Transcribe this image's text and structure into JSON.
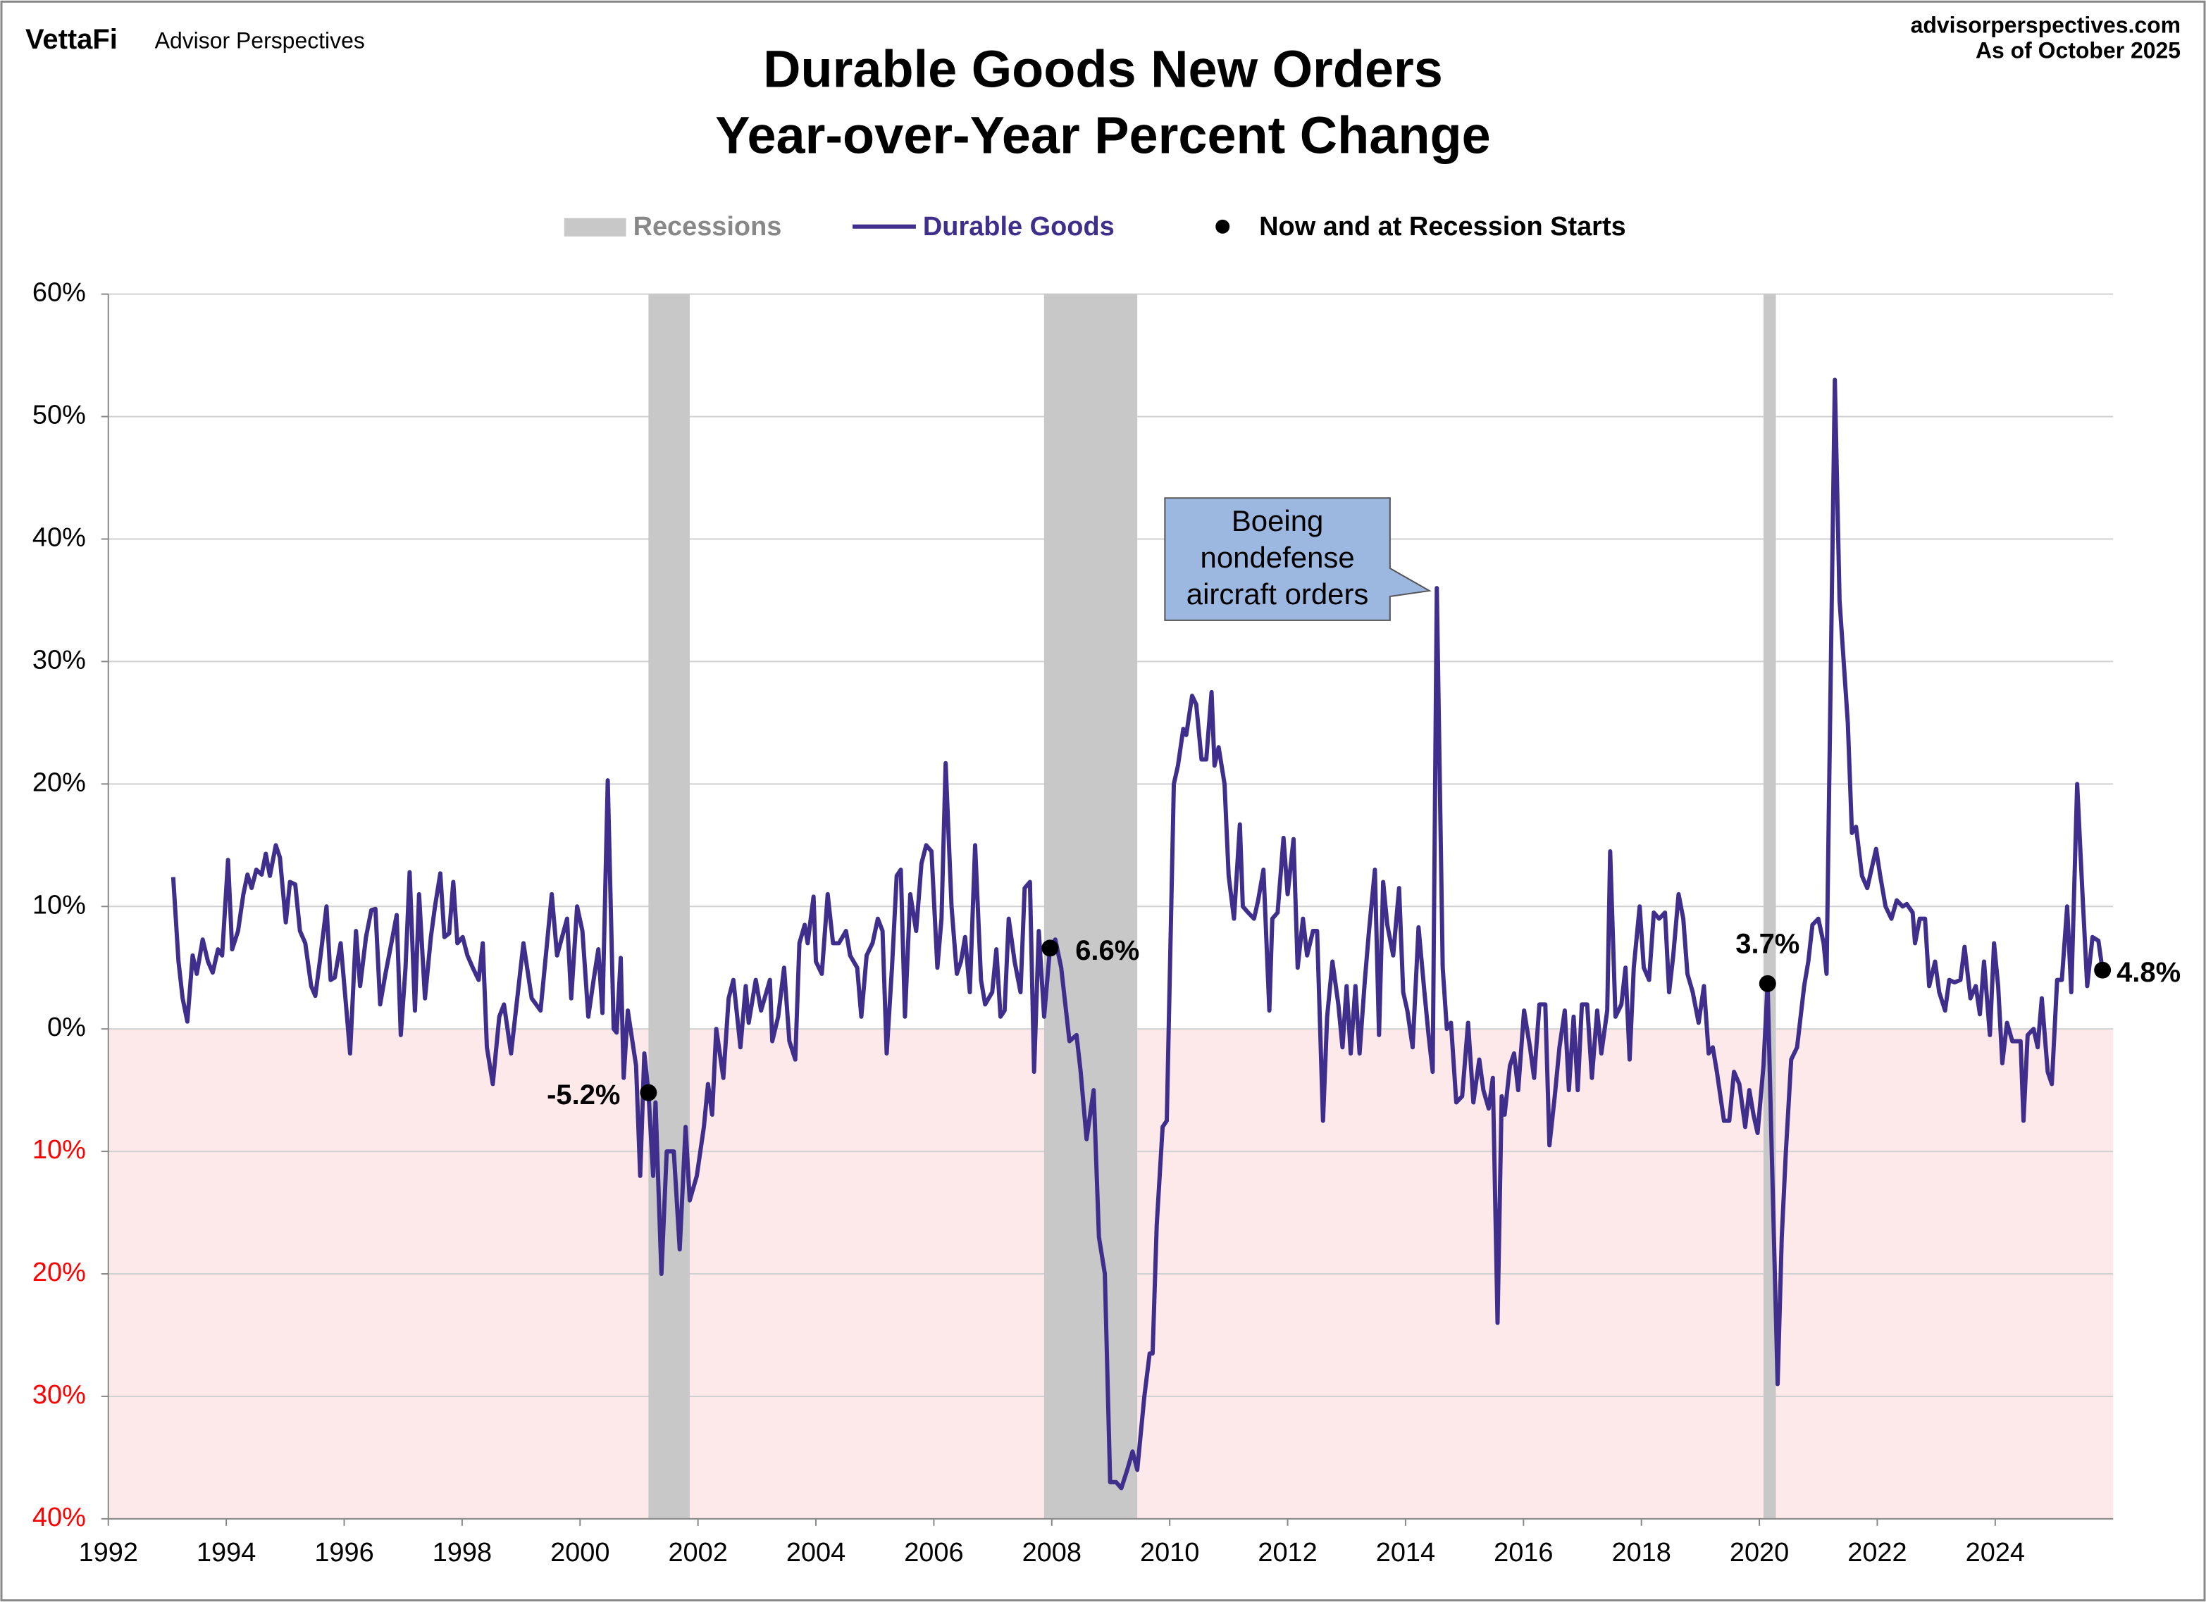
{
  "header": {
    "brand": "VettaFi",
    "publisher": "Advisor Perspectives",
    "website": "advisorperspectives.com",
    "as_of": "As of October 2025"
  },
  "chart_data": {
    "type": "line",
    "title": [
      "Durable Goods New Orders",
      "Year-over-Year Percent Change"
    ],
    "xlim": [
      1992,
      2026
    ],
    "xticks": [
      1992,
      1994,
      1996,
      1998,
      2000,
      2002,
      2004,
      2006,
      2008,
      2010,
      2012,
      2014,
      2016,
      2018,
      2020,
      2022,
      2024
    ],
    "ylim": [
      -40,
      60
    ],
    "yticks": [
      {
        "value": 60,
        "label": "60%"
      },
      {
        "value": 50,
        "label": "50%"
      },
      {
        "value": 40,
        "label": "40%"
      },
      {
        "value": 30,
        "label": "30%"
      },
      {
        "value": 20,
        "label": "20%"
      },
      {
        "value": 10,
        "label": "10%"
      },
      {
        "value": 0,
        "label": "0%"
      },
      {
        "value": -10,
        "label": "10%"
      },
      {
        "value": -20,
        "label": "20%"
      },
      {
        "value": -30,
        "label": "30%"
      },
      {
        "value": -40,
        "label": "40%"
      }
    ],
    "grid": true,
    "negative_tick_color": "#ff0000",
    "negative_fill": "#fde9ea",
    "recessions": {
      "name": "Recessions",
      "color": "#c8c8c8",
      "spans": [
        [
          2001.16,
          2001.86
        ],
        [
          2007.87,
          2009.45
        ],
        [
          2020.07,
          2020.28
        ]
      ]
    },
    "series": [
      {
        "name": "Durable Goods",
        "color": "#3f2e8c",
        "x": [
          1993.1,
          1993.19,
          1993.26,
          1993.34,
          1993.43,
          1993.5,
          1993.6,
          1993.69,
          1993.77,
          1993.86,
          1993.93,
          1994.03,
          1994.1,
          1994.2,
          1994.29,
          1994.36,
          1994.43,
          1994.51,
          1994.6,
          1994.67,
          1994.74,
          1994.84,
          1994.91,
          1995.01,
          1995.08,
          1995.17,
          1995.25,
          1995.34,
          1995.44,
          1995.51,
          1995.6,
          1995.7,
          1995.77,
          1995.84,
          1995.94,
          1996.03,
          1996.1,
          1996.2,
          1996.27,
          1996.37,
          1996.46,
          1996.53,
          1996.61,
          1996.7,
          1996.8,
          1996.89,
          1996.96,
          1997.04,
          1997.11,
          1997.2,
          1997.27,
          1997.37,
          1997.47,
          1997.54,
          1997.63,
          1997.7,
          1997.78,
          1997.85,
          1997.92,
          1998.01,
          1998.09,
          1998.18,
          1998.28,
          1998.35,
          1998.42,
          1998.52,
          1998.63,
          1998.71,
          1998.83,
          1999.04,
          1999.18,
          1999.33,
          1999.52,
          1999.61,
          1999.78,
          1999.85,
          1999.95,
          2000.04,
          2000.14,
          2000.23,
          2000.31,
          2000.38,
          2000.47,
          2000.57,
          2000.62,
          2000.69,
          2000.74,
          2000.81,
          2000.95,
          2001.02,
          2001.09,
          2001.16,
          2001.24,
          2001.28,
          2001.38,
          2001.47,
          2001.59,
          2001.69,
          2001.79,
          2001.86,
          2001.98,
          2002.1,
          2002.17,
          2002.24,
          2002.31,
          2002.43,
          2002.52,
          2002.6,
          2002.72,
          2002.81,
          2002.86,
          2002.98,
          2003.07,
          2003.22,
          2003.26,
          2003.36,
          2003.46,
          2003.55,
          2003.65,
          2003.72,
          2003.81,
          2003.86,
          2003.96,
          2004.0,
          2004.1,
          2004.2,
          2004.29,
          2004.39,
          2004.51,
          2004.58,
          2004.7,
          2004.77,
          2004.86,
          2004.96,
          2005.05,
          2005.13,
          2005.2,
          2005.29,
          2005.37,
          2005.44,
          2005.51,
          2005.6,
          2005.7,
          2005.79,
          2005.87,
          2005.96,
          2006.06,
          2006.13,
          2006.2,
          2006.3,
          2006.39,
          2006.46,
          2006.53,
          2006.61,
          2006.7,
          2006.8,
          2006.87,
          2006.99,
          2007.06,
          2007.13,
          2007.2,
          2007.27,
          2007.37,
          2007.47,
          2007.54,
          2007.63,
          2007.7,
          2007.78,
          2007.87,
          2007.97,
          2008.06,
          2008.16,
          2008.3,
          2008.42,
          2008.49,
          2008.59,
          2008.71,
          2008.8,
          2008.9,
          2008.99,
          2009.09,
          2009.18,
          2009.28,
          2009.37,
          2009.45,
          2009.57,
          2009.66,
          2009.71,
          2009.78,
          2009.88,
          2009.95,
          2010.07,
          2010.14,
          2010.23,
          2010.28,
          2010.38,
          2010.45,
          2010.54,
          2010.62,
          2010.71,
          2010.76,
          2010.83,
          2010.93,
          2011.0,
          2011.09,
          2011.19,
          2011.24,
          2011.33,
          2011.43,
          2011.5,
          2011.59,
          2011.69,
          2011.74,
          2011.83,
          2011.93,
          2012.0,
          2012.1,
          2012.17,
          2012.26,
          2012.33,
          2012.43,
          2012.5,
          2012.6,
          2012.67,
          2012.76,
          2012.86,
          2012.93,
          2013.0,
          2013.07,
          2013.15,
          2013.22,
          2013.31,
          2013.38,
          2013.48,
          2013.55,
          2013.62,
          2013.69,
          2013.79,
          2013.89,
          2013.96,
          2014.03,
          2014.12,
          2014.22,
          2014.32,
          2014.39,
          2014.46,
          2014.53,
          2014.63,
          2014.7,
          2014.77,
          2014.86,
          2014.96,
          2015.06,
          2015.15,
          2015.25,
          2015.32,
          2015.41,
          2015.48,
          2015.56,
          2015.63,
          2015.68,
          2015.77,
          2015.84,
          2015.91,
          2016.01,
          2016.11,
          2016.18,
          2016.27,
          2016.37,
          2016.44,
          2016.53,
          2016.61,
          2016.7,
          2016.77,
          2016.85,
          2016.92,
          2016.99,
          2017.08,
          2017.16,
          2017.25,
          2017.32,
          2017.42,
          2017.47,
          2017.56,
          2017.66,
          2017.73,
          2017.8,
          2017.87,
          2017.97,
          2018.04,
          2018.13,
          2018.21,
          2018.3,
          2018.4,
          2018.47,
          2018.54,
          2018.63,
          2018.71,
          2018.78,
          2018.87,
          2018.97,
          2019.06,
          2019.14,
          2019.21,
          2019.28,
          2019.4,
          2019.49,
          2019.57,
          2019.66,
          2019.76,
          2019.83,
          2019.9,
          2019.97,
          2020.07,
          2020.14,
          2020.21,
          2020.31,
          2020.38,
          2020.45,
          2020.54,
          2020.64,
          2020.76,
          2020.83,
          2020.9,
          2021.0,
          2021.09,
          2021.14,
          2021.28,
          2021.36,
          2021.5,
          2021.57,
          2021.64,
          2021.74,
          2021.83,
          2021.98,
          2022.05,
          2022.14,
          2022.24,
          2022.33,
          2022.43,
          2022.5,
          2022.6,
          2022.64,
          2022.72,
          2022.81,
          2022.88,
          2022.98,
          2023.05,
          2023.15,
          2023.22,
          2023.31,
          2023.41,
          2023.48,
          2023.58,
          2023.67,
          2023.74,
          2023.81,
          2023.91,
          2023.98,
          2024.05,
          2024.12,
          2024.2,
          2024.29,
          2024.36,
          2024.43,
          2024.48,
          2024.55,
          2024.65,
          2024.72,
          2024.79,
          2024.89,
          2024.96,
          2025.05,
          2025.13,
          2025.22,
          2025.29,
          2025.39,
          2025.48,
          2025.56,
          2025.65,
          2025.75,
          2025.82
        ],
        "values": [
          12.4,
          5.5,
          2.5,
          0.6,
          6,
          4.5,
          7.3,
          5.5,
          4.6,
          6.5,
          6,
          13.8,
          6.5,
          8,
          11,
          12.6,
          11.5,
          13,
          12.6,
          14.3,
          12.5,
          15,
          14,
          8.7,
          12,
          11.8,
          8,
          7,
          3.5,
          2.7,
          6,
          10,
          4,
          4.2,
          7,
          2,
          -2,
          8,
          3.5,
          7.5,
          9.7,
          9.8,
          2,
          4.5,
          7,
          9.3,
          -0.5,
          5,
          12.8,
          1.5,
          11,
          2.5,
          7.5,
          10,
          12.7,
          7.5,
          7.8,
          12,
          7,
          7.5,
          6,
          5,
          4,
          7,
          -1.5,
          -4.5,
          1,
          2,
          -2,
          7,
          2.5,
          1.5,
          11,
          6,
          9,
          2.5,
          10,
          8,
          1,
          4,
          6.5,
          1.3,
          20.3,
          0,
          -0.3,
          5.8,
          -4,
          1.5,
          -3,
          -12,
          -2,
          -5.2,
          -12,
          -6,
          -20,
          -10,
          -10,
          -18,
          -8,
          -14,
          -12,
          -8,
          -4.5,
          -7,
          0,
          -4,
          2.5,
          4,
          -1.5,
          3.5,
          0.5,
          4,
          1.5,
          4,
          -1,
          1,
          5,
          -1,
          -2.5,
          7,
          8.5,
          7,
          10.8,
          5.5,
          4.5,
          11,
          7,
          7,
          8,
          6,
          5,
          1,
          6,
          7,
          9,
          8,
          -2,
          5,
          12.5,
          13,
          1,
          11,
          8,
          13.5,
          15,
          14.5,
          5,
          9,
          21.7,
          10,
          4.5,
          5.5,
          7.5,
          3,
          15,
          4,
          2,
          3,
          6.5,
          1,
          1.5,
          9,
          5.5,
          3,
          11.5,
          12,
          -3.5,
          8,
          1,
          6.6,
          7.3,
          5,
          -1,
          -0.5,
          -3.5,
          -9,
          -5,
          -17,
          -20,
          -37,
          -37,
          -37.5,
          -36,
          -34.5,
          -36,
          -30,
          -26.5,
          -26.5,
          -16,
          -8,
          -7.5,
          20,
          21.5,
          24.5,
          24,
          27.2,
          26.5,
          22,
          22,
          27.5,
          21.5,
          23,
          20,
          12.5,
          9,
          16.7,
          10,
          9.5,
          9,
          10.5,
          13,
          1.5,
          9,
          9.5,
          15.6,
          11,
          15.5,
          5,
          9,
          6,
          8,
          8,
          -7.5,
          1,
          5.5,
          2,
          -1.5,
          3.5,
          -2,
          3.5,
          -2,
          4,
          8,
          13,
          -0.5,
          12,
          8.5,
          6,
          11.5,
          3,
          1.5,
          -1.5,
          8.3,
          3,
          -0.5,
          -3.5,
          36,
          5,
          0,
          0.5,
          -6,
          -5.5,
          0.5,
          -6,
          -2.5,
          -5,
          -6.5,
          -4,
          -24,
          -5.5,
          -7,
          -3,
          -2,
          -5,
          1.5,
          -1.5,
          -4,
          2,
          2,
          -9.5,
          -5.5,
          -1.5,
          1.5,
          -5,
          1,
          -5,
          2,
          2,
          -4,
          1.5,
          -2,
          1.5,
          14.5,
          1,
          2,
          5,
          -2.5,
          5,
          10,
          5,
          4,
          9.5,
          9,
          9.5,
          3,
          6,
          11,
          9,
          4.5,
          3,
          0.5,
          3.5,
          -2,
          -1.5,
          -3.5,
          -7.5,
          -7.5,
          -3.5,
          -4.5,
          -8,
          -5,
          -7,
          -8.5,
          -3,
          3.7,
          -10,
          -29,
          -17,
          -10,
          -2.5,
          -1.5,
          3.5,
          5.5,
          8.5,
          9,
          7,
          4.5,
          53,
          35,
          25,
          16,
          16.5,
          12.5,
          11.5,
          14.7,
          12.5,
          10,
          9,
          10.5,
          10,
          10.2,
          9.5,
          7,
          9,
          9,
          3.5,
          5.5,
          3,
          1.5,
          4,
          3.8,
          4,
          6.7,
          2.5,
          3.5,
          1.2,
          5.5,
          -0.5,
          7,
          3.5,
          -2.8,
          0.5,
          -1,
          -1,
          -1,
          -7.5,
          -0.5,
          0,
          -1.5,
          2.5,
          -3.5,
          -4.5,
          4,
          4,
          10,
          3,
          20,
          11,
          3.5,
          7.5,
          7.2,
          4.8
        ]
      }
    ],
    "markers": {
      "name": "Now and at Recession Starts",
      "color": "#000000",
      "x": [
        2001.16,
        2007.97,
        2020.14,
        2025.82
      ],
      "values": [
        -5.2,
        6.6,
        3.7,
        4.8
      ],
      "value_labels": [
        "-5.2%",
        "6.6%",
        "3.7%",
        "4.8%"
      ]
    },
    "annotation": {
      "lines": [
        "Boeing",
        "nondefense",
        "aircraft orders"
      ],
      "color": "#9db8e0"
    }
  }
}
